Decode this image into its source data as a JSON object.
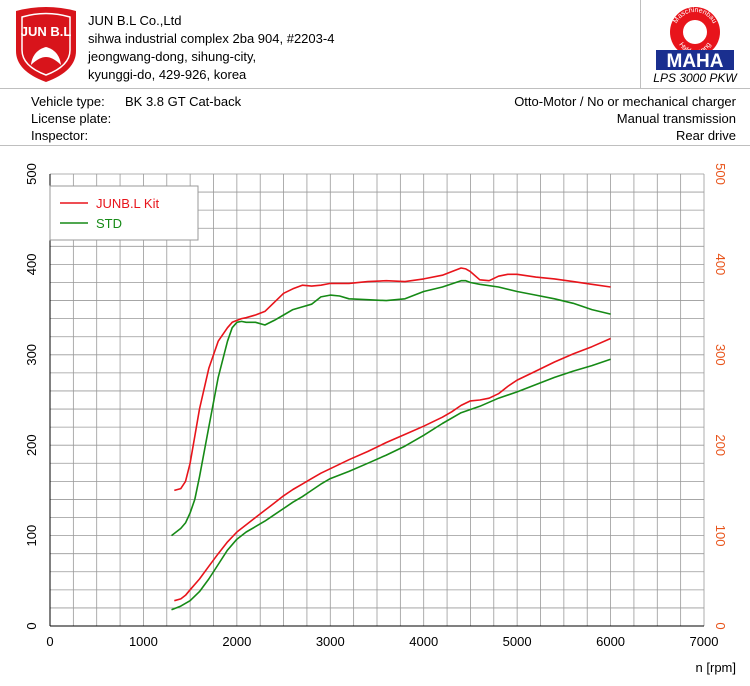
{
  "company": {
    "logo_text": "JUN B.L",
    "name": "JUN B.L Co.,Ltd",
    "address1": "sihwa industrial complex 2ba 904, #2203-4",
    "address2": "jeongwang-dong, sihung-city,",
    "address3": "kyunggi-do, 429-926, korea"
  },
  "maha": {
    "ring_top": "Maschinenbau",
    "ring_bottom": "Haldenwang",
    "wordmark": "MAHA",
    "model": "LPS 3000 PKW"
  },
  "vehicle": {
    "type_label": "Vehicle type:",
    "type_value": "BK 3.8 GT Cat-back",
    "plate_label": "License plate:",
    "plate_value": "",
    "inspector_label": "Inspector:",
    "inspector_value": "",
    "engine": "Otto-Motor / No or mechanical charger",
    "transmission": "Manual transmission",
    "drive": "Rear drive"
  },
  "chart_data": {
    "type": "line",
    "title": "",
    "xlabel": "n [rpm]",
    "ylabel": "",
    "xlim": [
      0,
      7000
    ],
    "ylim": [
      0,
      500
    ],
    "xticks": [
      0,
      1000,
      2000,
      3000,
      4000,
      5000,
      6000,
      7000
    ],
    "yticks_left": [
      0,
      100,
      200,
      300,
      400,
      500
    ],
    "yticks_right": [
      0,
      100,
      200,
      300,
      400,
      500
    ],
    "grid": true,
    "legend_position": "top-left",
    "colors": {
      "kit": "#e8141b",
      "std": "#168a16",
      "right_axis": "#e8541b",
      "grid": "#999999"
    },
    "series": [
      {
        "name": "JUNB.L Kit",
        "color": "#e8141b",
        "x": [
          1330,
          1400,
          1450,
          1500,
          1550,
          1600,
          1700,
          1800,
          1900,
          1950,
          2000,
          2050,
          2100,
          2200,
          2300,
          2400,
          2500,
          2600,
          2700,
          2800,
          2900,
          3000,
          3100,
          3200,
          3400,
          3600,
          3800,
          4000,
          4200,
          4300,
          4400,
          4450,
          4500,
          4600,
          4700,
          4800,
          4900,
          5000,
          5200,
          5400,
          5600,
          5800,
          6000
        ],
        "y": [
          150,
          152,
          160,
          180,
          210,
          240,
          285,
          315,
          330,
          336,
          338,
          340,
          341,
          344,
          348,
          358,
          368,
          373,
          377,
          376,
          377,
          379,
          379,
          379,
          381,
          382,
          381,
          384,
          388,
          392,
          396,
          395,
          392,
          383,
          382,
          387,
          389,
          389,
          386,
          384,
          381,
          378,
          375
        ]
      },
      {
        "name": "STD",
        "color": "#168a16",
        "x": [
          1300,
          1400,
          1450,
          1500,
          1550,
          1600,
          1700,
          1800,
          1900,
          1950,
          2000,
          2050,
          2100,
          2200,
          2300,
          2400,
          2500,
          2600,
          2700,
          2800,
          2900,
          3000,
          3100,
          3200,
          3400,
          3600,
          3800,
          4000,
          4200,
          4400,
          4450,
          4500,
          4600,
          4800,
          5000,
          5200,
          5400,
          5600,
          5800,
          6000
        ],
        "y": [
          100,
          108,
          114,
          125,
          140,
          165,
          220,
          275,
          315,
          330,
          336,
          337,
          336,
          336,
          333,
          338,
          344,
          350,
          353,
          356,
          364,
          366,
          365,
          362,
          361,
          360,
          362,
          370,
          375,
          382,
          382,
          380,
          378,
          375,
          370,
          366,
          362,
          357,
          350,
          345
        ]
      },
      {
        "name": "",
        "color": "#e8141b",
        "x": [
          1330,
          1400,
          1450,
          1500,
          1600,
          1700,
          1800,
          1900,
          2000,
          2100,
          2200,
          2300,
          2400,
          2500,
          2600,
          2700,
          2800,
          2900,
          3000,
          3200,
          3400,
          3600,
          3800,
          4000,
          4200,
          4300,
          4400,
          4500,
          4600,
          4700,
          4800,
          4900,
          5000,
          5200,
          5400,
          5600,
          5800,
          6000
        ],
        "y": [
          28,
          30,
          34,
          40,
          52,
          66,
          80,
          93,
          104,
          112,
          120,
          128,
          136,
          144,
          151,
          157,
          163,
          169,
          174,
          184,
          193,
          203,
          212,
          221,
          231,
          237,
          244,
          249,
          250,
          252,
          257,
          265,
          272,
          282,
          292,
          301,
          309,
          318
        ]
      },
      {
        "name": "",
        "color": "#168a16",
        "x": [
          1300,
          1400,
          1500,
          1600,
          1700,
          1800,
          1900,
          2000,
          2100,
          2200,
          2300,
          2400,
          2500,
          2600,
          2700,
          2800,
          2900,
          3000,
          3200,
          3400,
          3600,
          3800,
          4000,
          4200,
          4400,
          4600,
          4800,
          5000,
          5200,
          5400,
          5600,
          5800,
          6000
        ],
        "y": [
          18,
          22,
          28,
          38,
          52,
          68,
          84,
          96,
          104,
          110,
          116,
          123,
          130,
          137,
          143,
          150,
          157,
          163,
          171,
          180,
          189,
          199,
          211,
          224,
          236,
          243,
          252,
          259,
          267,
          275,
          282,
          288,
          295
        ]
      }
    ]
  }
}
